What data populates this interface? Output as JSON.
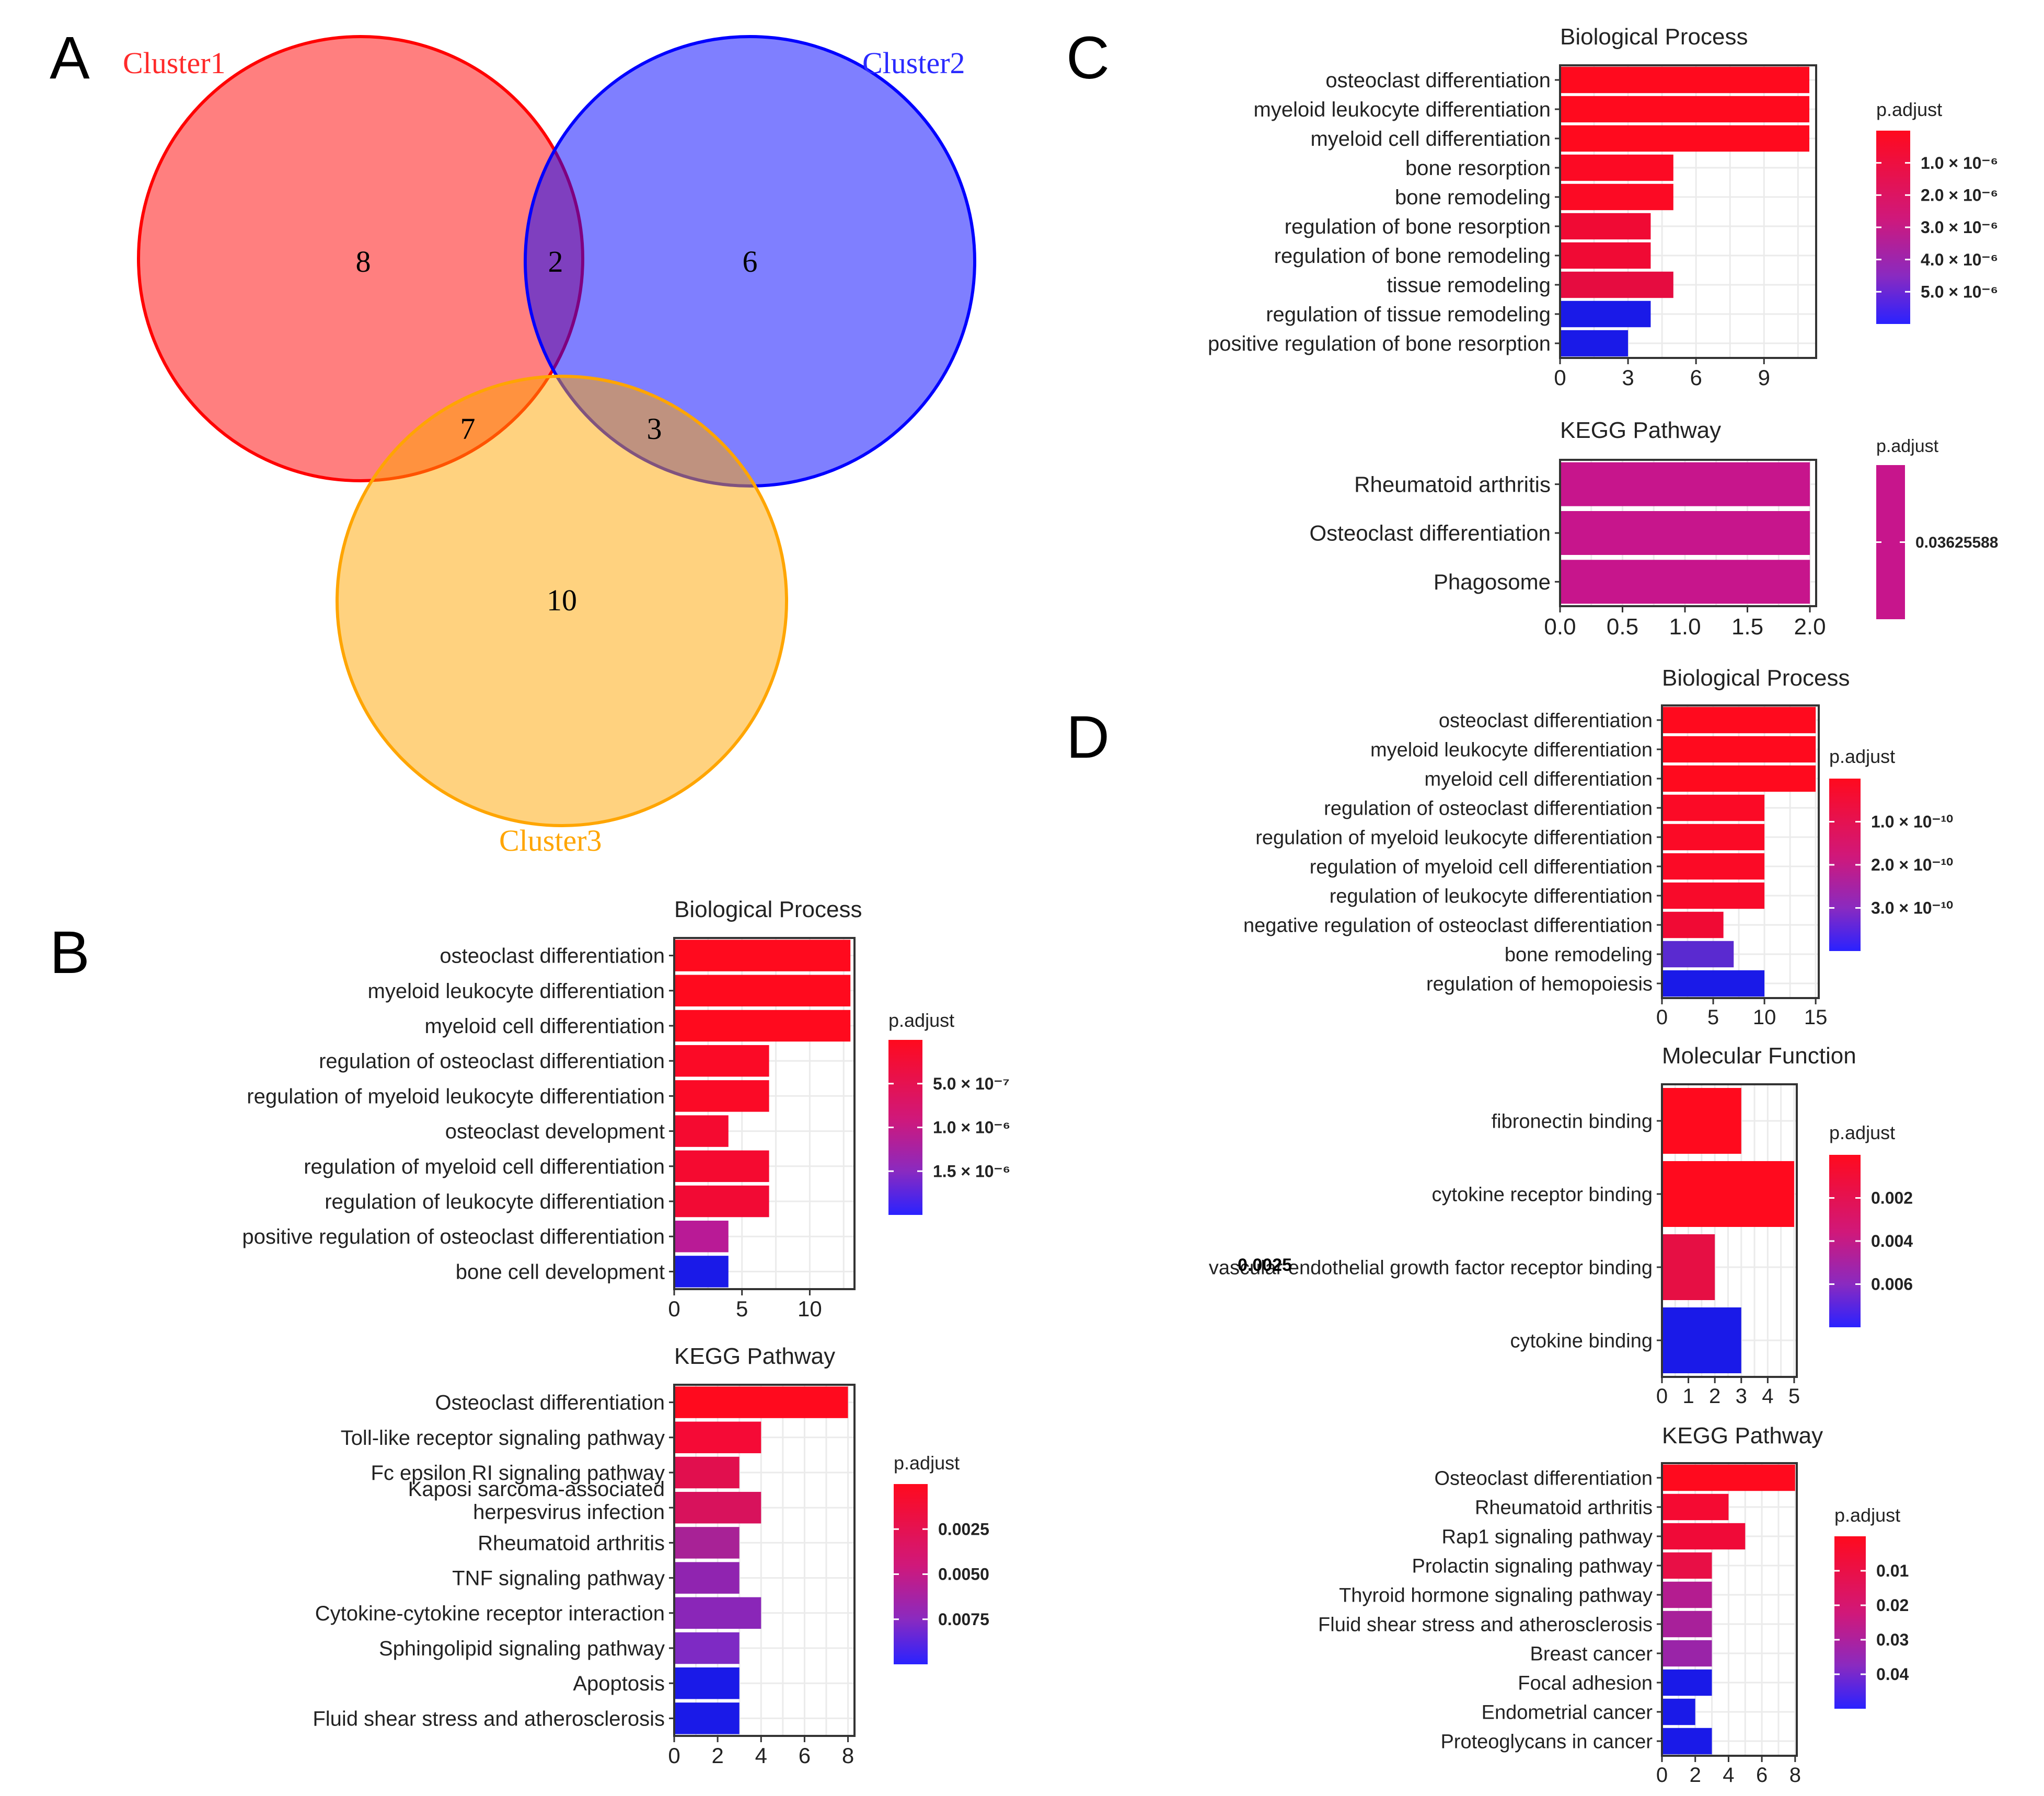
{
  "panel_labels": {
    "A": "A",
    "B": "B",
    "C": "C",
    "D": "D"
  },
  "chart_data": [
    {
      "id": "A",
      "type": "venn",
      "sets": [
        {
          "name": "Cluster1",
          "color": "#ff3333"
        },
        {
          "name": "Cluster2",
          "color": "#3333ff"
        },
        {
          "name": "Cluster3",
          "color": "#ffa500"
        }
      ],
      "regions": {
        "c1_only": "8",
        "c1_c2": "2",
        "c2_only": "6",
        "c1_c3": "7",
        "c2_c3": "3",
        "c3_only": "10"
      }
    },
    {
      "id": "B-bp",
      "type": "bar",
      "orientation": "horizontal",
      "title": "Biological Process",
      "categories": [
        "osteoclast differentiation",
        "myeloid leukocyte differentiation",
        "myeloid cell differentiation",
        "regulation of osteoclast differentiation",
        "regulation of myeloid leukocyte differentiation",
        "osteoclast development",
        "regulation of myeloid cell differentiation",
        "regulation of leukocyte differentiation",
        "positive regulation of osteoclast differentiation",
        "bone cell development"
      ],
      "values": [
        13,
        13,
        13,
        7,
        7,
        4,
        7,
        7,
        4,
        4
      ],
      "colors": [
        "#ff0a1e",
        "#ff0a1e",
        "#ff0a1e",
        "#fb0a26",
        "#fb0a26",
        "#f50a30",
        "#f50a30",
        "#f20a34",
        "#b91a96",
        "#1a1ae8"
      ],
      "xlim": [
        0,
        13.3
      ],
      "xticks": [
        0,
        5,
        10
      ],
      "legend": {
        "title": "p.adjust",
        "labels": [
          "5.0 × 10⁻⁷",
          "1.0 × 10⁻⁶",
          "1.5 × 10⁻⁶"
        ]
      }
    },
    {
      "id": "B-kegg",
      "type": "bar",
      "orientation": "horizontal",
      "title": "KEGG Pathway",
      "categories": [
        "Osteoclast differentiation",
        "Toll-like receptor signaling pathway",
        "Fc epsilon RI signaling pathway",
        "Kaposi sarcoma-associated herpesvirus infection",
        "Rheumatoid arthritis",
        "TNF signaling pathway",
        "Cytokine-cytokine receptor interaction",
        "Sphingolipid signaling pathway",
        "Apoptosis",
        "Fluid shear stress and atherosclerosis"
      ],
      "values": [
        8,
        4,
        3,
        4,
        3,
        3,
        4,
        3,
        3,
        3
      ],
      "colors": [
        "#ff0a1e",
        "#f50a36",
        "#e10f4e",
        "#d8125c",
        "#a82296",
        "#9024b0",
        "#8a26b8",
        "#7e2ac4",
        "#1a1ae8",
        "#1a1ae8"
      ],
      "xlim": [
        0,
        8.3
      ],
      "xticks": [
        0,
        2,
        4,
        6,
        8
      ],
      "legend": {
        "title": "p.adjust",
        "labels": [
          "0.0025",
          "0.0050",
          "0.0075"
        ]
      }
    },
    {
      "id": "C-bp",
      "type": "bar",
      "orientation": "horizontal",
      "title": "Biological Process",
      "categories": [
        "osteoclast differentiation",
        "myeloid leukocyte differentiation",
        "myeloid cell differentiation",
        "bone resorption",
        "bone remodeling",
        "regulation of bone resorption",
        "regulation of bone remodeling",
        "tissue remodeling",
        "regulation of tissue remodeling",
        "positive regulation of bone resorption"
      ],
      "values": [
        11,
        11,
        11,
        5,
        5,
        4,
        4,
        5,
        4,
        3
      ],
      "colors": [
        "#ff0a1e",
        "#ff0a1e",
        "#ff0a1e",
        "#fc0a24",
        "#fc0a24",
        "#f00a34",
        "#f00a34",
        "#e60c40",
        "#1a1ae8",
        "#1a1ae8"
      ],
      "xlim": [
        0,
        11.3
      ],
      "xticks": [
        0,
        3,
        6,
        9
      ],
      "legend": {
        "title": "p.adjust",
        "labels": [
          "1.0 × 10⁻⁶",
          "2.0 × 10⁻⁶",
          "3.0 × 10⁻⁶",
          "4.0 × 10⁻⁶",
          "5.0 × 10⁻⁶"
        ]
      }
    },
    {
      "id": "C-kegg",
      "type": "bar",
      "orientation": "horizontal",
      "title": "KEGG Pathway",
      "categories": [
        "Rheumatoid arthritis",
        "Osteoclast differentiation",
        "Phagosome"
      ],
      "values": [
        2,
        2,
        2
      ],
      "colors": [
        "#c7158c",
        "#c7158c",
        "#c7158c"
      ],
      "xlim": [
        0,
        2.05
      ],
      "xticks": [
        0,
        0.5,
        1,
        1.5,
        2
      ],
      "xtick_labels": [
        "0.0",
        "0.5",
        "1.0",
        "1.5",
        "2.0"
      ],
      "legend": {
        "title": "p.adjust",
        "labels": [
          "0.03625588"
        ]
      }
    },
    {
      "id": "D-bp",
      "type": "bar",
      "orientation": "horizontal",
      "title": "Biological Process",
      "categories": [
        "osteoclast differentiation",
        "myeloid leukocyte differentiation",
        "myeloid cell differentiation",
        "regulation of osteoclast differentiation",
        "regulation of myeloid leukocyte differentiation",
        "regulation of myeloid cell differentiation",
        "regulation of leukocyte differentiation",
        "negative regulation of osteoclast differentiation",
        "bone remodeling",
        "regulation of hemopoiesis"
      ],
      "values": [
        15,
        15,
        15,
        10,
        10,
        10,
        10,
        6,
        7,
        10
      ],
      "colors": [
        "#ff0a1e",
        "#ff0a1e",
        "#ff0a1e",
        "#fb0a26",
        "#fb0a26",
        "#fb0a26",
        "#f80a2a",
        "#f00a34",
        "#5a2ad0",
        "#1a1ae8"
      ],
      "xlim": [
        0,
        15.3
      ],
      "xticks": [
        0,
        5,
        10,
        15
      ],
      "legend": {
        "title": "p.adjust",
        "labels": [
          "1.0 × 10⁻¹⁰",
          "2.0 × 10⁻¹⁰",
          "3.0 × 10⁻¹⁰"
        ]
      }
    },
    {
      "id": "D-mf",
      "type": "bar",
      "orientation": "horizontal",
      "title": "Molecular Function",
      "categories": [
        "fibronectin binding",
        "cytokine receptor binding",
        "vascular endothelial growth factor receptor binding",
        "cytokine binding"
      ],
      "values": [
        3,
        5,
        2,
        3
      ],
      "colors": [
        "#ff0a1e",
        "#ff0a1e",
        "#e60f44",
        "#1a1ae8"
      ],
      "xlim": [
        0,
        5.1
      ],
      "xticks": [
        0,
        1,
        2,
        3,
        4,
        5
      ],
      "legend": {
        "title": "p.adjust",
        "labels": [
          "0.002",
          "0.004",
          "0.006"
        ]
      },
      "overlay_text": "0.0025"
    },
    {
      "id": "D-kegg",
      "type": "bar",
      "orientation": "horizontal",
      "title": "KEGG Pathway",
      "categories": [
        "Osteoclast differentiation",
        "Rheumatoid arthritis",
        "Rap1 signaling pathway",
        "Prolactin signaling pathway",
        "Thyroid hormone signaling pathway",
        "Fluid shear stress and atherosclerosis",
        "Breast cancer",
        "Focal adhesion",
        "Endometrial cancer",
        "Proteoglycans in cancer"
      ],
      "values": [
        8,
        4,
        5,
        3,
        3,
        3,
        3,
        3,
        2,
        3
      ],
      "colors": [
        "#ff0a1e",
        "#f50a32",
        "#f00a38",
        "#e80f46",
        "#b41c90",
        "#a8209a",
        "#9a24a8",
        "#1a1ae8",
        "#1a1ae8",
        "#1a1ae8"
      ],
      "xlim": [
        0,
        8.1
      ],
      "xticks": [
        0,
        2,
        4,
        6,
        8
      ],
      "legend": {
        "title": "p.adjust",
        "labels": [
          "0.01",
          "0.02",
          "0.03",
          "0.04"
        ]
      }
    }
  ]
}
